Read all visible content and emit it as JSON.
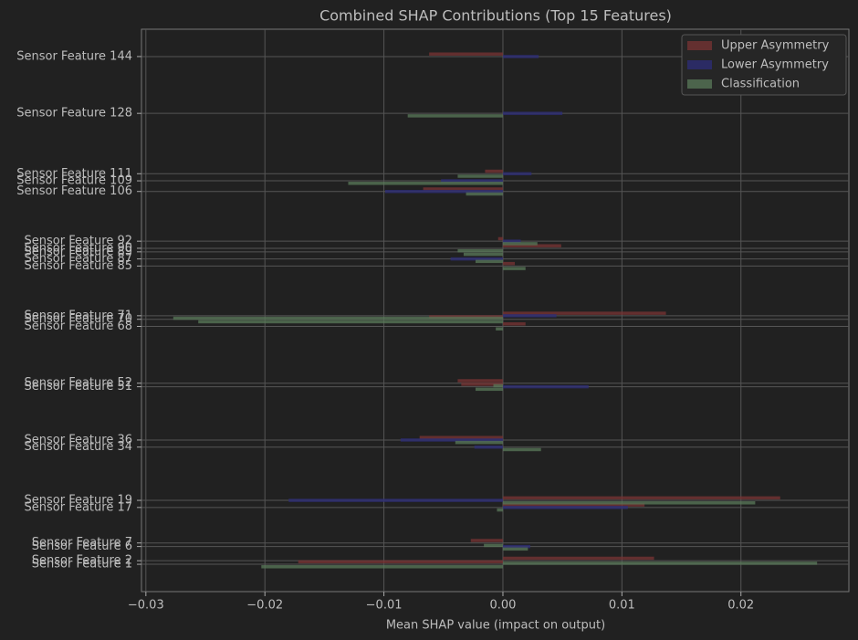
{
  "chart_data": {
    "type": "barh",
    "title": "Combined SHAP Contributions (Top 15 Features)",
    "x_label": "Mean SHAP value (impact on output)",
    "y": [
      144,
      128,
      111,
      109,
      106,
      92,
      90,
      89,
      87,
      85,
      71,
      70,
      68,
      52,
      51,
      36,
      34,
      19,
      17,
      7,
      6,
      2,
      1
    ],
    "series": [
      {
        "name": "Upper Asymmetry",
        "color": "#7a3434",
        "values": [
          -0.0062,
          null,
          -0.0015,
          null,
          -0.0067,
          -0.0004,
          0.0049,
          null,
          null,
          0.001,
          0.0137,
          -0.0062,
          0.0019,
          -0.0038,
          -0.0035,
          -0.007,
          null,
          0.0233,
          0.0119,
          -0.0027,
          null,
          0.0127,
          -0.0172
        ]
      },
      {
        "name": "Lower Asymmetry",
        "color": "#2e2e7a",
        "values": [
          0.003,
          0.005,
          0.0024,
          -0.0052,
          -0.0099,
          0.0015,
          null,
          null,
          -0.0044,
          null,
          0.0045,
          null,
          null,
          null,
          0.0072,
          -0.0086,
          -0.0024,
          -0.018,
          0.0105,
          null,
          0.0023,
          null,
          null
        ]
      },
      {
        "name": "Classification",
        "color": "#5a7a5a",
        "values": [
          null,
          -0.008,
          -0.0038,
          -0.013,
          -0.0031,
          0.0029,
          -0.0038,
          -0.0033,
          -0.0023,
          0.0019,
          -0.0277,
          -0.0256,
          -0.0006,
          -0.0008,
          -0.0023,
          -0.004,
          0.0032,
          0.0212,
          -0.0005,
          -0.0016,
          0.0021,
          0.0264,
          -0.0203
        ]
      }
    ],
    "xlim": [
      -0.03037,
      0.02907
    ],
    "xticks": [
      {
        "value": -0.03,
        "label": "−0.03"
      },
      {
        "value": -0.02,
        "label": "−0.02"
      },
      {
        "value": -0.01,
        "label": "−0.01"
      },
      {
        "value": 0,
        "label": "0.00"
      },
      0.01,
      0.02
    ],
    "ylim": [
      -6.7,
      151.7
    ],
    "y_inverted": true,
    "yticks": [
      {
        "value": 144,
        "label": "Sensor Feature 144"
      },
      {
        "value": 128,
        "label": "Sensor Feature 128"
      },
      {
        "value": 111,
        "label": "Sensor Feature 111"
      },
      {
        "value": 109,
        "label": "Sensor Feature 109"
      },
      {
        "value": 106,
        "label": "Sensor Feature 106"
      },
      {
        "value": 92,
        "label": "Sensor Feature 92"
      },
      {
        "value": 90,
        "label": "Sensor Feature 90"
      },
      {
        "value": 89,
        "label": "Sensor Feature 89"
      },
      {
        "value": 87,
        "label": "Sensor Feature 87"
      },
      {
        "value": 85,
        "label": "Sensor Feature 85"
      },
      {
        "value": 71,
        "label": "Sensor Feature 71"
      },
      {
        "value": 70,
        "label": "Sensor Feature 70"
      },
      {
        "value": 68,
        "label": "Sensor Feature 68"
      },
      {
        "value": 52,
        "label": "Sensor Feature 52"
      },
      {
        "value": 51,
        "label": "Sensor Feature 51"
      },
      {
        "value": 36,
        "label": "Sensor Feature 36"
      },
      {
        "value": 34,
        "label": "Sensor Feature 34"
      },
      {
        "value": 19,
        "label": "Sensor Feature 19"
      },
      {
        "value": 17,
        "label": "Sensor Feature 17"
      },
      {
        "value": 7,
        "label": "Sensor Feature 7"
      },
      {
        "value": 6,
        "label": "Sensor Feature 6"
      },
      {
        "value": 2,
        "label": "Sensor Feature 2"
      },
      {
        "value": 1,
        "label": "Sensor Feature 1"
      }
    ],
    "grid": true,
    "legend": "upper right",
    "bar_opacity": 0.75
  }
}
